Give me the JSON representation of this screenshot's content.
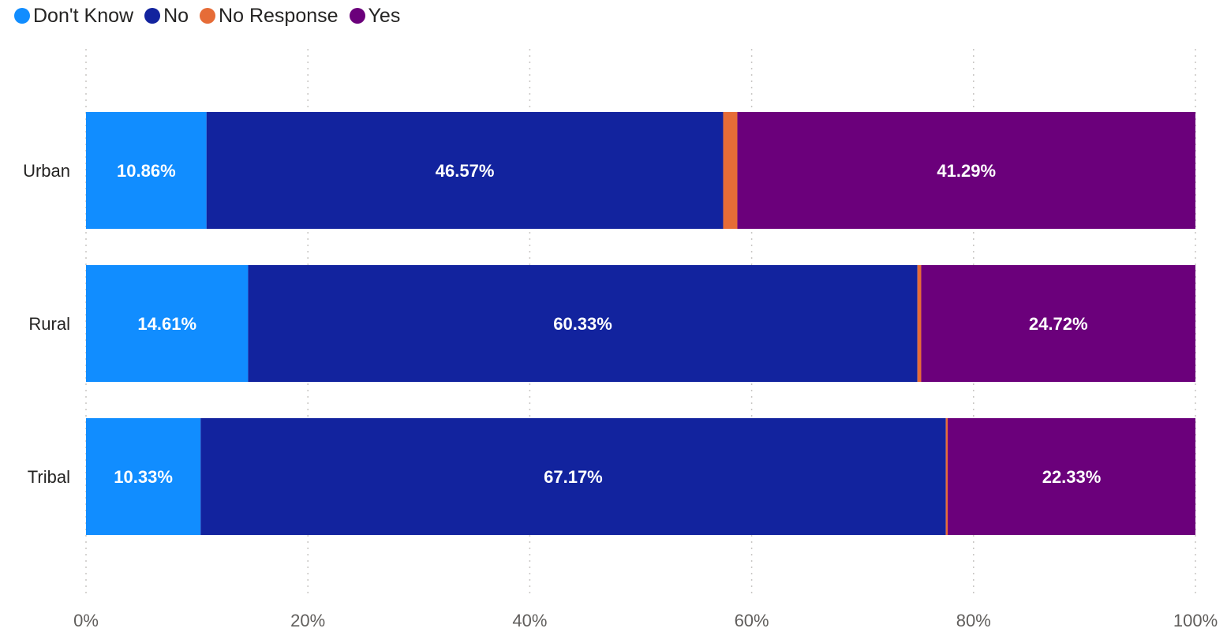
{
  "chart_data": {
    "type": "bar",
    "orientation": "horizontal",
    "stacked": "100%",
    "title": "",
    "xlabel": "",
    "ylabel": "",
    "categories": [
      "Urban",
      "Rural",
      "Tribal"
    ],
    "series": [
      {
        "name": "Don't Know",
        "color": "#118DFF",
        "values": [
          10.86,
          14.61,
          10.33
        ],
        "labels": [
          "10.86%",
          "14.61%",
          "10.33%"
        ]
      },
      {
        "name": "No",
        "color": "#12239E",
        "values": [
          46.57,
          60.33,
          67.17
        ],
        "labels": [
          "46.57%",
          "60.33%",
          "67.17%"
        ]
      },
      {
        "name": "No Response",
        "color": "#E66C37",
        "values": [
          1.28,
          0.34,
          0.17
        ],
        "labels": [
          "",
          "",
          ""
        ]
      },
      {
        "name": "Yes",
        "color": "#6B007B",
        "values": [
          41.29,
          24.72,
          22.33
        ],
        "labels": [
          "41.29%",
          "24.72%",
          "22.33%"
        ]
      }
    ],
    "xlim": [
      0,
      100
    ],
    "xticks": [
      0,
      20,
      40,
      60,
      80,
      100
    ],
    "xtick_labels": [
      "0%",
      "20%",
      "40%",
      "60%",
      "80%",
      "100%"
    ],
    "grid": "vertical dotted",
    "legend": "top-left"
  }
}
